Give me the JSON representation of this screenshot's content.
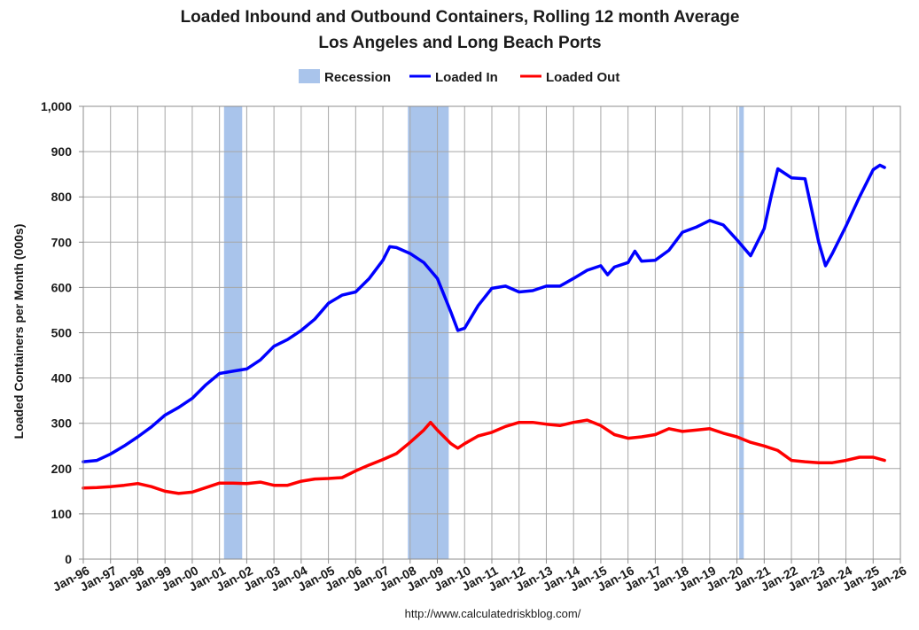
{
  "chart_data": {
    "type": "line",
    "title": "Loaded Inbound and Outbound Containers, Rolling 12 month Average",
    "subtitle": "Los Angeles and Long Beach Ports",
    "xlabel": "",
    "ylabel": "Loaded Containers per Month (000s)",
    "ylim": [
      0,
      1000
    ],
    "xlim": [
      "1996-01",
      "2026-01"
    ],
    "grid": true,
    "legend_position": "top-center",
    "source": "http://www.calculatedriskblog.com/",
    "x_tick_labels": [
      "Jan-96",
      "Jan-97",
      "Jan-98",
      "Jan-99",
      "Jan-00",
      "Jan-01",
      "Jan-02",
      "Jan-03",
      "Jan-04",
      "Jan-05",
      "Jan-06",
      "Jan-07",
      "Jan-08",
      "Jan-09",
      "Jan-10",
      "Jan-11",
      "Jan-12",
      "Jan-13",
      "Jan-14",
      "Jan-15",
      "Jan-16",
      "Jan-17",
      "Jan-18",
      "Jan-19",
      "Jan-20",
      "Jan-21",
      "Jan-22",
      "Jan-23",
      "Jan-24",
      "Jan-25",
      "Jan-26"
    ],
    "y_tick_labels": [
      "0",
      "100",
      "200",
      "300",
      "400",
      "500",
      "600",
      "700",
      "800",
      "900",
      "1,000"
    ],
    "y_ticks": [
      0,
      100,
      200,
      300,
      400,
      500,
      600,
      700,
      800,
      900,
      1000
    ],
    "recessions": [
      {
        "start": "2001-03",
        "end": "2001-11"
      },
      {
        "start": "2007-12",
        "end": "2009-06"
      },
      {
        "start": "2020-02",
        "end": "2020-04"
      }
    ],
    "legend": [
      {
        "label": "Recession",
        "color": "#A9C4EB",
        "kind": "patch"
      },
      {
        "label": "Loaded In",
        "color": "#0000FF",
        "kind": "line"
      },
      {
        "label": "Loaded Out",
        "color": "#FF0000",
        "kind": "line"
      }
    ],
    "series": [
      {
        "name": "Loaded In",
        "color": "#0000FF",
        "points": [
          [
            "1996-01",
            215
          ],
          [
            "1996-07",
            218
          ],
          [
            "1997-01",
            232
          ],
          [
            "1997-07",
            250
          ],
          [
            "1998-01",
            270
          ],
          [
            "1998-07",
            292
          ],
          [
            "1999-01",
            318
          ],
          [
            "1999-07",
            335
          ],
          [
            "2000-01",
            355
          ],
          [
            "2000-07",
            385
          ],
          [
            "2001-01",
            410
          ],
          [
            "2001-07",
            415
          ],
          [
            "2002-01",
            420
          ],
          [
            "2002-07",
            440
          ],
          [
            "2003-01",
            470
          ],
          [
            "2003-07",
            485
          ],
          [
            "2004-01",
            505
          ],
          [
            "2004-07",
            530
          ],
          [
            "2005-01",
            565
          ],
          [
            "2005-07",
            583
          ],
          [
            "2006-01",
            590
          ],
          [
            "2006-07",
            620
          ],
          [
            "2007-01",
            660
          ],
          [
            "2007-04",
            690
          ],
          [
            "2007-07",
            688
          ],
          [
            "2008-01",
            675
          ],
          [
            "2008-07",
            655
          ],
          [
            "2009-01",
            620
          ],
          [
            "2009-07",
            545
          ],
          [
            "2009-10",
            505
          ],
          [
            "2010-01",
            510
          ],
          [
            "2010-07",
            560
          ],
          [
            "2011-01",
            598
          ],
          [
            "2011-07",
            603
          ],
          [
            "2012-01",
            590
          ],
          [
            "2012-07",
            593
          ],
          [
            "2013-01",
            603
          ],
          [
            "2013-07",
            603
          ],
          [
            "2014-01",
            620
          ],
          [
            "2014-07",
            638
          ],
          [
            "2015-01",
            648
          ],
          [
            "2015-04",
            628
          ],
          [
            "2015-07",
            645
          ],
          [
            "2016-01",
            655
          ],
          [
            "2016-04",
            680
          ],
          [
            "2016-07",
            658
          ],
          [
            "2017-01",
            660
          ],
          [
            "2017-07",
            682
          ],
          [
            "2018-01",
            722
          ],
          [
            "2018-07",
            733
          ],
          [
            "2019-01",
            748
          ],
          [
            "2019-07",
            738
          ],
          [
            "2020-01",
            705
          ],
          [
            "2020-07",
            670
          ],
          [
            "2021-01",
            730
          ],
          [
            "2021-04",
            800
          ],
          [
            "2021-07",
            862
          ],
          [
            "2022-01",
            842
          ],
          [
            "2022-07",
            840
          ],
          [
            "2023-01",
            700
          ],
          [
            "2023-04",
            648
          ],
          [
            "2023-07",
            675
          ],
          [
            "2024-01",
            735
          ],
          [
            "2024-07",
            800
          ],
          [
            "2025-01",
            860
          ],
          [
            "2025-04",
            870
          ],
          [
            "2025-06",
            865
          ]
        ]
      },
      {
        "name": "Loaded Out",
        "color": "#FF0000",
        "points": [
          [
            "1996-01",
            157
          ],
          [
            "1996-07",
            158
          ],
          [
            "1997-01",
            160
          ],
          [
            "1997-07",
            163
          ],
          [
            "1998-01",
            167
          ],
          [
            "1998-07",
            160
          ],
          [
            "1999-01",
            150
          ],
          [
            "1999-07",
            145
          ],
          [
            "2000-01",
            148
          ],
          [
            "2000-07",
            158
          ],
          [
            "2001-01",
            168
          ],
          [
            "2001-07",
            168
          ],
          [
            "2002-01",
            167
          ],
          [
            "2002-07",
            170
          ],
          [
            "2003-01",
            163
          ],
          [
            "2003-07",
            163
          ],
          [
            "2004-01",
            172
          ],
          [
            "2004-07",
            177
          ],
          [
            "2005-01",
            178
          ],
          [
            "2005-07",
            180
          ],
          [
            "2006-01",
            195
          ],
          [
            "2006-07",
            208
          ],
          [
            "2007-01",
            220
          ],
          [
            "2007-07",
            233
          ],
          [
            "2008-01",
            258
          ],
          [
            "2008-07",
            285
          ],
          [
            "2008-10",
            302
          ],
          [
            "2009-01",
            285
          ],
          [
            "2009-07",
            255
          ],
          [
            "2009-10",
            245
          ],
          [
            "2010-01",
            255
          ],
          [
            "2010-07",
            272
          ],
          [
            "2011-01",
            280
          ],
          [
            "2011-07",
            293
          ],
          [
            "2012-01",
            302
          ],
          [
            "2012-07",
            302
          ],
          [
            "2013-01",
            298
          ],
          [
            "2013-07",
            295
          ],
          [
            "2014-01",
            302
          ],
          [
            "2014-07",
            307
          ],
          [
            "2015-01",
            295
          ],
          [
            "2015-07",
            275
          ],
          [
            "2016-01",
            267
          ],
          [
            "2016-07",
            270
          ],
          [
            "2017-01",
            275
          ],
          [
            "2017-07",
            288
          ],
          [
            "2018-01",
            282
          ],
          [
            "2018-07",
            285
          ],
          [
            "2019-01",
            288
          ],
          [
            "2019-07",
            278
          ],
          [
            "2020-01",
            270
          ],
          [
            "2020-07",
            258
          ],
          [
            "2021-01",
            250
          ],
          [
            "2021-07",
            240
          ],
          [
            "2022-01",
            218
          ],
          [
            "2022-07",
            215
          ],
          [
            "2023-01",
            213
          ],
          [
            "2023-07",
            213
          ],
          [
            "2024-01",
            218
          ],
          [
            "2024-07",
            225
          ],
          [
            "2025-01",
            225
          ],
          [
            "2025-06",
            218
          ]
        ]
      }
    ]
  }
}
